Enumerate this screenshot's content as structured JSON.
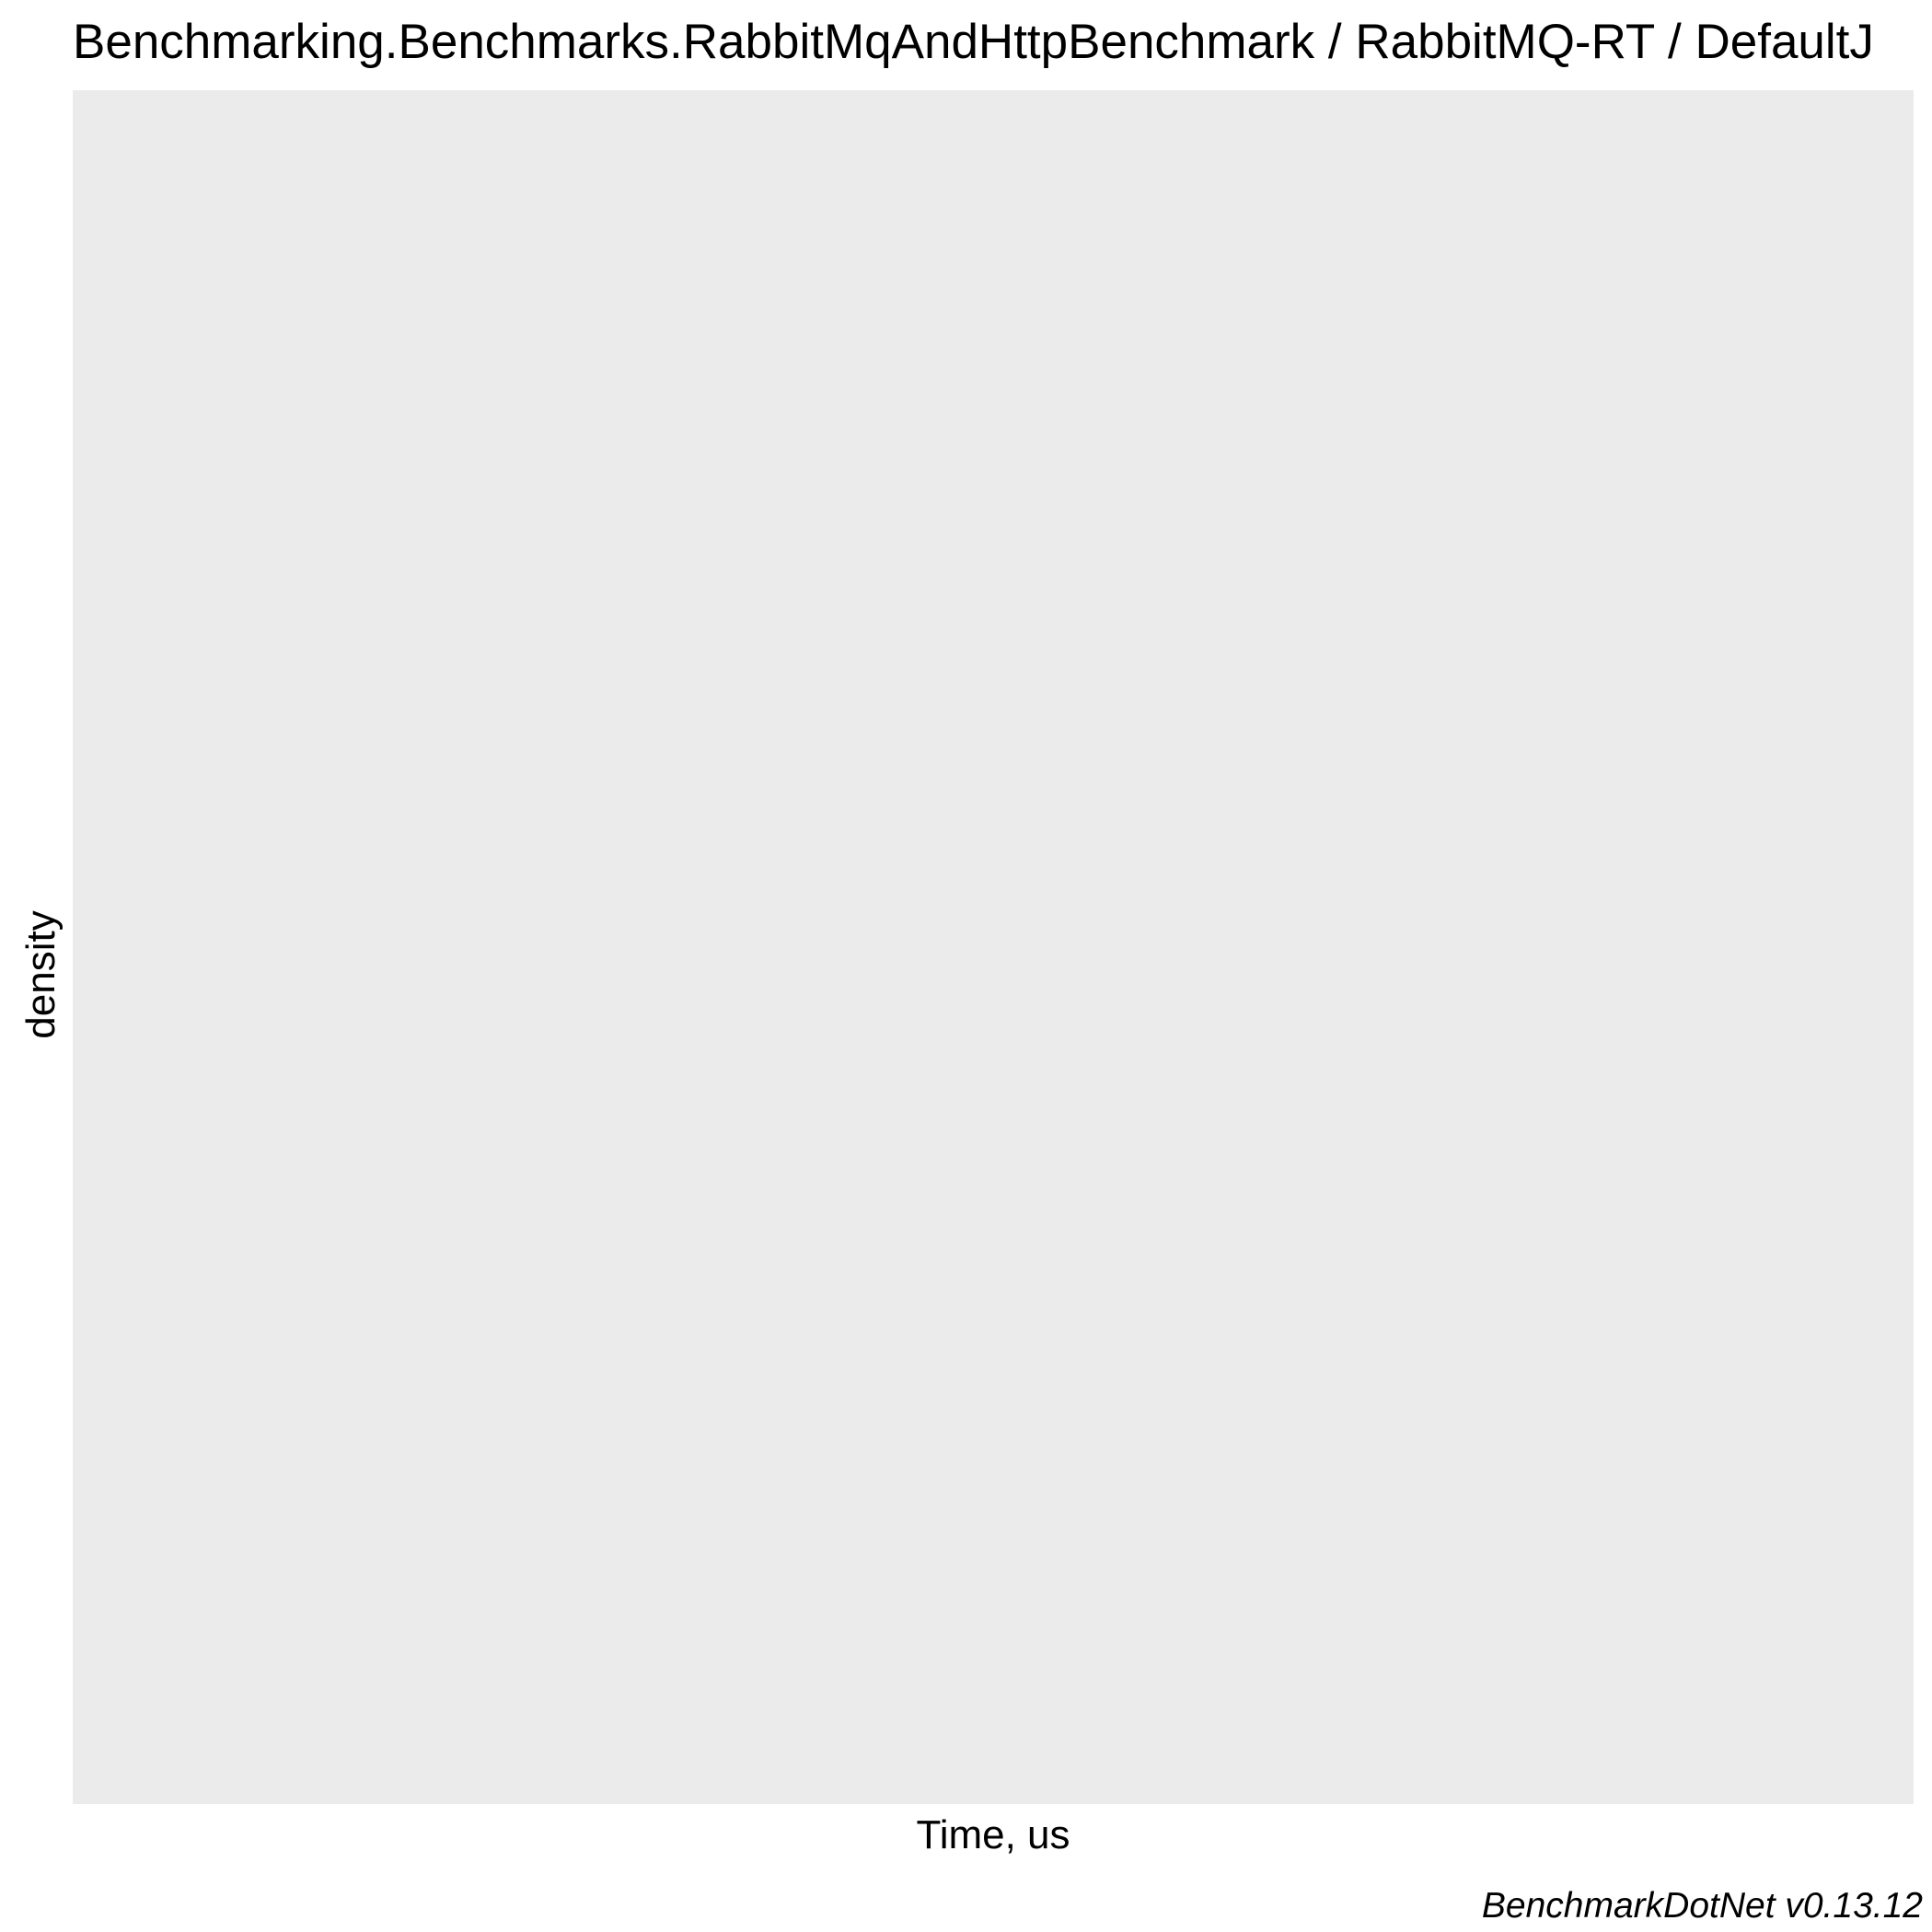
{
  "chart_data": {
    "type": "area",
    "title": "Benchmarking.Benchmarks.RabbitMqAndHttpBenchmark / RabbitMQ-RT / DefaultJ",
    "xlabel": "Time, us",
    "ylabel": "density",
    "caption": "BenchmarkDotNet v0.13.12",
    "series": [],
    "grid": false,
    "panel_color": "#ebebeb"
  }
}
